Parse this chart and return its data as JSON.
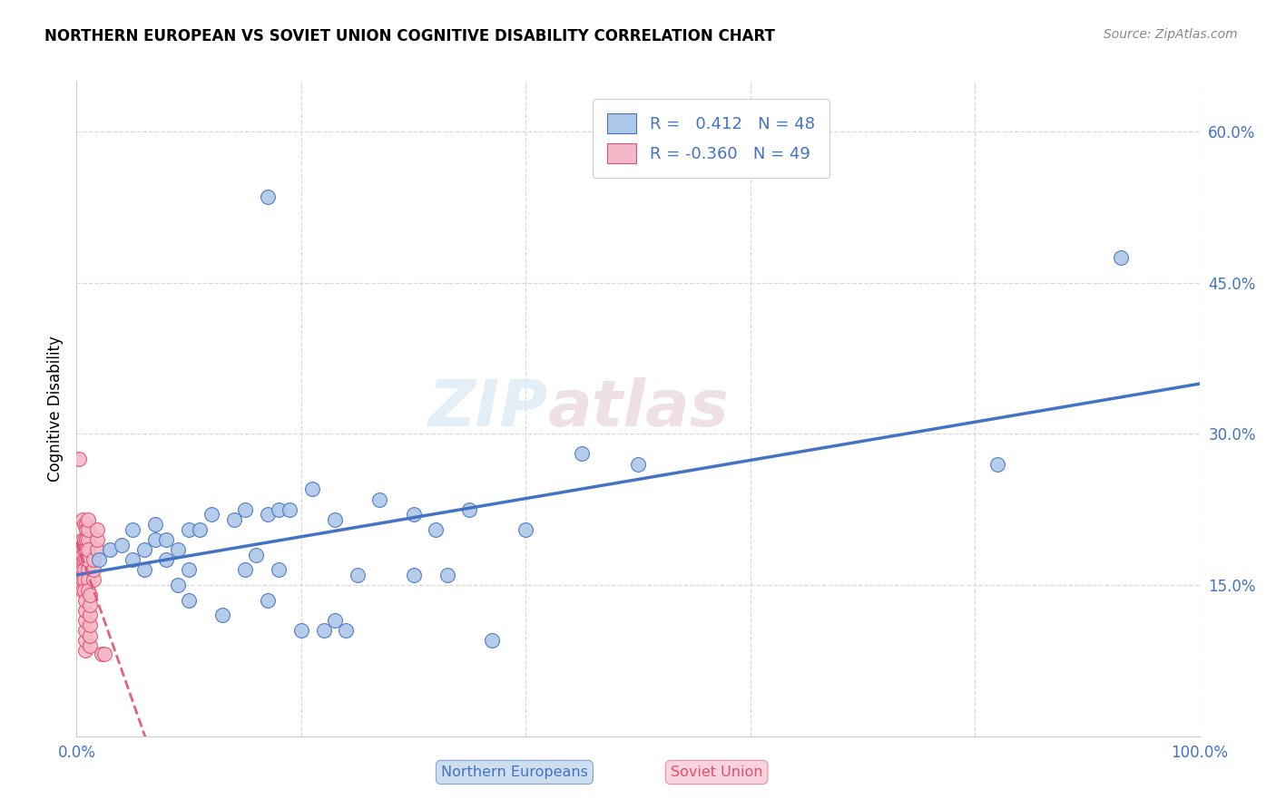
{
  "title": "NORTHERN EUROPEAN VS SOVIET UNION COGNITIVE DISABILITY CORRELATION CHART",
  "source": "Source: ZipAtlas.com",
  "xlabel_blue": "Northern Europeans",
  "xlabel_pink": "Soviet Union",
  "ylabel": "Cognitive Disability",
  "watermark_zip": "ZIP",
  "watermark_atlas": "atlas",
  "blue_R": "0.412",
  "blue_N": "48",
  "pink_R": "-0.360",
  "pink_N": "49",
  "blue_color": "#adc8e8",
  "pink_color": "#f5b8c8",
  "blue_line_color": "#4472c4",
  "pink_line_color": "#e05070",
  "blue_scatter": [
    [
      0.02,
      0.175
    ],
    [
      0.03,
      0.185
    ],
    [
      0.04,
      0.19
    ],
    [
      0.05,
      0.175
    ],
    [
      0.05,
      0.205
    ],
    [
      0.06,
      0.185
    ],
    [
      0.06,
      0.165
    ],
    [
      0.07,
      0.195
    ],
    [
      0.07,
      0.21
    ],
    [
      0.08,
      0.195
    ],
    [
      0.08,
      0.175
    ],
    [
      0.09,
      0.185
    ],
    [
      0.09,
      0.15
    ],
    [
      0.1,
      0.205
    ],
    [
      0.1,
      0.165
    ],
    [
      0.1,
      0.135
    ],
    [
      0.11,
      0.205
    ],
    [
      0.12,
      0.22
    ],
    [
      0.13,
      0.12
    ],
    [
      0.14,
      0.215
    ],
    [
      0.15,
      0.225
    ],
    [
      0.15,
      0.165
    ],
    [
      0.16,
      0.18
    ],
    [
      0.17,
      0.22
    ],
    [
      0.17,
      0.135
    ],
    [
      0.18,
      0.225
    ],
    [
      0.18,
      0.165
    ],
    [
      0.19,
      0.225
    ],
    [
      0.2,
      0.105
    ],
    [
      0.21,
      0.245
    ],
    [
      0.22,
      0.105
    ],
    [
      0.23,
      0.215
    ],
    [
      0.23,
      0.115
    ],
    [
      0.24,
      0.105
    ],
    [
      0.25,
      0.16
    ],
    [
      0.27,
      0.235
    ],
    [
      0.3,
      0.22
    ],
    [
      0.3,
      0.16
    ],
    [
      0.32,
      0.205
    ],
    [
      0.33,
      0.16
    ],
    [
      0.35,
      0.225
    ],
    [
      0.37,
      0.095
    ],
    [
      0.4,
      0.205
    ],
    [
      0.45,
      0.28
    ],
    [
      0.5,
      0.27
    ],
    [
      0.82,
      0.27
    ],
    [
      0.93,
      0.475
    ],
    [
      0.17,
      0.535
    ]
  ],
  "pink_scatter": [
    [
      0.002,
      0.275
    ],
    [
      0.005,
      0.215
    ],
    [
      0.005,
      0.195
    ],
    [
      0.005,
      0.185
    ],
    [
      0.005,
      0.175
    ],
    [
      0.005,
      0.165
    ],
    [
      0.005,
      0.155
    ],
    [
      0.005,
      0.145
    ],
    [
      0.005,
      0.18
    ],
    [
      0.007,
      0.21
    ],
    [
      0.007,
      0.195
    ],
    [
      0.007,
      0.185
    ],
    [
      0.007,
      0.175
    ],
    [
      0.007,
      0.165
    ],
    [
      0.007,
      0.155
    ],
    [
      0.007,
      0.145
    ],
    [
      0.008,
      0.085
    ],
    [
      0.008,
      0.095
    ],
    [
      0.008,
      0.105
    ],
    [
      0.008,
      0.115
    ],
    [
      0.008,
      0.125
    ],
    [
      0.008,
      0.135
    ],
    [
      0.009,
      0.21
    ],
    [
      0.009,
      0.205
    ],
    [
      0.009,
      0.195
    ],
    [
      0.009,
      0.185
    ],
    [
      0.009,
      0.175
    ],
    [
      0.01,
      0.165
    ],
    [
      0.01,
      0.155
    ],
    [
      0.01,
      0.145
    ],
    [
      0.01,
      0.195
    ],
    [
      0.01,
      0.205
    ],
    [
      0.01,
      0.215
    ],
    [
      0.01,
      0.175
    ],
    [
      0.01,
      0.185
    ],
    [
      0.012,
      0.09
    ],
    [
      0.012,
      0.1
    ],
    [
      0.012,
      0.11
    ],
    [
      0.012,
      0.12
    ],
    [
      0.012,
      0.13
    ],
    [
      0.012,
      0.14
    ],
    [
      0.015,
      0.155
    ],
    [
      0.015,
      0.165
    ],
    [
      0.015,
      0.175
    ],
    [
      0.018,
      0.185
    ],
    [
      0.018,
      0.195
    ],
    [
      0.018,
      0.205
    ],
    [
      0.022,
      0.082
    ],
    [
      0.025,
      0.082
    ]
  ],
  "xlim": [
    0.0,
    1.0
  ],
  "ylim": [
    0.0,
    0.65
  ],
  "yticks": [
    0.15,
    0.3,
    0.45,
    0.6
  ],
  "ytick_labels": [
    "15.0%",
    "30.0%",
    "45.0%",
    "60.0%"
  ],
  "xticks": [
    0.0,
    1.0
  ],
  "xtick_labels": [
    "0.0%",
    "100.0%"
  ],
  "grid_yticks": [
    0.15,
    0.3,
    0.45,
    0.6
  ],
  "grid_color": "#d8d8d8",
  "bg_color": "#ffffff",
  "tick_color": "#4472c4"
}
